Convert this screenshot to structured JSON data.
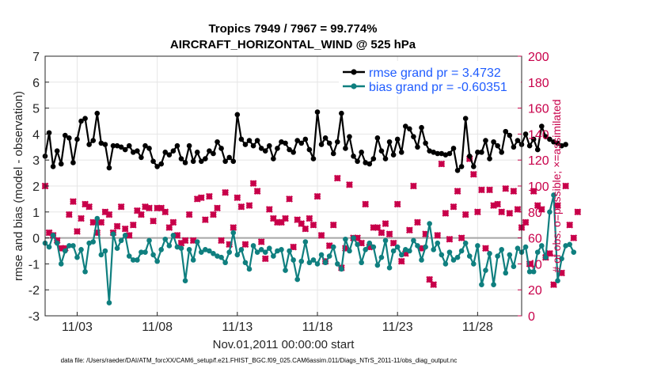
{
  "chart_data": {
    "type": "line",
    "title": "Tropics 7949 / 7967 = 99.774%",
    "subtitle": "AIRCRAFT_HORIZONTAL_WIND @ 525 hPa",
    "xlabel": "Nov.01,2011 00:00:00 start",
    "ylabel_left": "rmse and bias (model - observation)",
    "ylabel_right": "# of obs: o=possible; ×=assimilated",
    "xlim": [
      1.0,
      30.75
    ],
    "ylim_left": [
      -3,
      7
    ],
    "ylim_right": [
      0,
      200
    ],
    "x_ticks": [
      3,
      8,
      13,
      18,
      23,
      28
    ],
    "x_tick_labels": [
      "11/03",
      "11/08",
      "11/13",
      "11/18",
      "11/23",
      "11/28"
    ],
    "y_ticks_left": [
      -3,
      -2,
      -1,
      0,
      1,
      2,
      3,
      4,
      5,
      6,
      7
    ],
    "y_tick_labels_left": [
      "-3",
      "-2",
      "-1",
      "0",
      "1",
      "2",
      "3",
      "4",
      "5",
      "6",
      "7"
    ],
    "y_ticks_right": [
      0,
      20,
      40,
      60,
      80,
      100,
      120,
      140,
      160,
      180,
      200
    ],
    "y_tick_labels_right": [
      "0",
      "20",
      "40",
      "60",
      "80",
      "100",
      "120",
      "140",
      "160",
      "180",
      "200"
    ],
    "legend_position": "top-right",
    "zero_line": true,
    "series": [
      {
        "name": "rmse grand pr = 3.4732",
        "axis": "left",
        "color": "#000000",
        "values": [
          3.15,
          4.05,
          2.75,
          3.35,
          2.85,
          3.95,
          3.85,
          2.9,
          3.8,
          4.5,
          4.6,
          3.6,
          3.75,
          4.8,
          3.65,
          3.6,
          2.7,
          3.55,
          3.55,
          3.5,
          3.4,
          3.55,
          3.3,
          3.35,
          3.1,
          3.55,
          3.45,
          2.95,
          2.75,
          2.85,
          3.3,
          3.2,
          3.35,
          3.55,
          3.05,
          2.9,
          3.55,
          2.95,
          3.3,
          2.95,
          3.05,
          3.35,
          3.25,
          3.7,
          3.45,
          2.95,
          3.1,
          2.95,
          4.75,
          3.8,
          3.6,
          3.75,
          3.55,
          3.75,
          3.45,
          3.35,
          3.55,
          3.05,
          3.45,
          3.7,
          3.65,
          3.4,
          3.3,
          3.75,
          3.65,
          3.8,
          3.4,
          3.05,
          4.85,
          3.6,
          3.85,
          3.65,
          3.25,
          3.7,
          4.8,
          3.45,
          3.9,
          3.15,
          2.95,
          3.3,
          2.9,
          2.85,
          3.05,
          3.85,
          3.35,
          3.05,
          3.7,
          3.2,
          3.8,
          3.3,
          4.3,
          4.2,
          3.9,
          3.5,
          4.25,
          3.65,
          3.35,
          3.3,
          3.25,
          3.25,
          3.2,
          3.25,
          3.45,
          2.6,
          2.75,
          4.6,
          3.15,
          2.75,
          3.3,
          3.3,
          3.75,
          3.05,
          3.7,
          3.55,
          3.3,
          4.1,
          3.95,
          3.5,
          3.75,
          3.6,
          4.0,
          3.55,
          3.8,
          3.4,
          4.3,
          3.9,
          3.8,
          3.7,
          3.65,
          3.55,
          3.6
        ]
      },
      {
        "name": "bias grand pr = -0.60351",
        "axis": "left",
        "color": "#0f7f7f",
        "values": [
          -0.2,
          -0.35,
          0.1,
          -0.2,
          -1.0,
          -0.5,
          -0.3,
          -0.3,
          -0.75,
          -0.45,
          -1.3,
          -0.2,
          -0.15,
          0.75,
          -0.65,
          -0.5,
          -2.5,
          0.15,
          -0.4,
          -0.1,
          0.1,
          -0.7,
          -0.85,
          -0.85,
          -0.55,
          -0.55,
          -0.1,
          -0.65,
          -0.9,
          -0.45,
          -0.05,
          -0.3,
          0.1,
          -0.35,
          -0.4,
          -1.65,
          -0.45,
          -0.85,
          -0.15,
          -0.55,
          -0.45,
          -0.5,
          -0.6,
          -0.7,
          -0.75,
          -0.95,
          -0.55,
          0.2,
          -0.65,
          -0.45,
          -0.95,
          -1.2,
          -0.3,
          -0.55,
          -0.45,
          -0.55,
          -0.4,
          -0.7,
          -0.5,
          -0.45,
          -1.25,
          -0.5,
          -0.85,
          -1.6,
          -0.9,
          -0.15,
          -0.95,
          -0.85,
          -1.0,
          -0.65,
          -0.95,
          -0.7,
          -0.35,
          -1.0,
          -1.2,
          -0.05,
          -0.5,
          0.0,
          -0.25,
          -0.95,
          -0.45,
          -0.2,
          -0.35,
          -1.05,
          -0.75,
          -0.1,
          -1.15,
          -0.5,
          -0.35,
          -0.65,
          -0.45,
          -0.5,
          -0.1,
          -0.3,
          -0.85,
          -0.35,
          0.55,
          -0.45,
          -0.2,
          -0.65,
          -1.0,
          -0.55,
          -0.85,
          -0.75,
          -0.5,
          -0.2,
          -0.7,
          -1.0,
          -0.3,
          -1.8,
          -1.25,
          -0.6,
          -1.8,
          -0.7,
          -0.45,
          -1.35,
          -0.65,
          -1.1,
          -0.4,
          -0.55,
          -0.35,
          -1.3,
          -1.3,
          -0.55,
          -0.3,
          -0.75,
          1.0,
          1.65,
          -1.65,
          -0.8,
          -0.3,
          -0.25,
          -0.55
        ]
      },
      {
        "name": "obs possible",
        "axis": "right",
        "color": "#c8004a",
        "marker": "o",
        "values": [
          100,
          64,
          62,
          58,
          52,
          52,
          78,
          88,
          65,
          75,
          86,
          84,
          72,
          64,
          72,
          80,
          78,
          64,
          69,
          84,
          67,
          62,
          70,
          81,
          78,
          84,
          83,
          73,
          83,
          83,
          80,
          68,
          72,
          62,
          56,
          58,
          78,
          58,
          90,
          91,
          74,
          92,
          78,
          83,
          58,
          95,
          55,
          68,
          91,
          84,
          55,
          85,
          102,
          96,
          57,
          44,
          82,
          75,
          72,
          72,
          75,
          90,
          53,
          74,
          71,
          67,
          75,
          70,
          92,
          62,
          42,
          54,
          70,
          106,
          37,
          52,
          101,
          60,
          60,
          56,
          86,
          53,
          68,
          68,
          64,
          71,
          63,
          56,
          86,
          42,
          48,
          66,
          100,
          72,
          52,
          63,
          28,
          24,
          62,
          117,
          79,
          59,
          84,
          96,
          60,
          78,
          121,
          109,
          80,
          97,
          52,
          97,
          85,
          86,
          80,
          98,
          79,
          96,
          82,
          68,
          72,
          40,
          96,
          85,
          82,
          45,
          48,
          24,
          85,
          33,
          100,
          70,
          60,
          80
        ]
      },
      {
        "name": "obs assimilated",
        "axis": "right",
        "color": "#c8004a",
        "marker": "x",
        "values": [
          100,
          64,
          62,
          58,
          52,
          52,
          78,
          88,
          65,
          75,
          86,
          84,
          72,
          64,
          72,
          80,
          78,
          64,
          69,
          84,
          67,
          62,
          70,
          81,
          78,
          84,
          83,
          73,
          83,
          83,
          80,
          68,
          72,
          62,
          56,
          58,
          78,
          58,
          90,
          91,
          74,
          92,
          78,
          83,
          58,
          95,
          55,
          68,
          91,
          84,
          55,
          85,
          102,
          96,
          57,
          44,
          82,
          75,
          72,
          72,
          75,
          90,
          53,
          74,
          71,
          67,
          75,
          70,
          92,
          62,
          42,
          54,
          70,
          106,
          37,
          52,
          101,
          60,
          60,
          56,
          86,
          53,
          68,
          68,
          64,
          71,
          63,
          56,
          86,
          42,
          48,
          66,
          100,
          72,
          52,
          63,
          28,
          24,
          62,
          117,
          79,
          59,
          84,
          96,
          60,
          78,
          121,
          109,
          80,
          97,
          52,
          97,
          85,
          86,
          80,
          98,
          79,
          96,
          82,
          68,
          72,
          40,
          96,
          85,
          82,
          45,
          48,
          24,
          85,
          33,
          100,
          70,
          60,
          80
        ]
      }
    ]
  },
  "footer": "data file: /Users/raeder/DAI/ATM_forcXX/CAM6_setup/f.e21.FHIST_BGC.f09_025.CAM6assim.011/Diags_NTrS_2011-11/obs_diag_output.nc"
}
